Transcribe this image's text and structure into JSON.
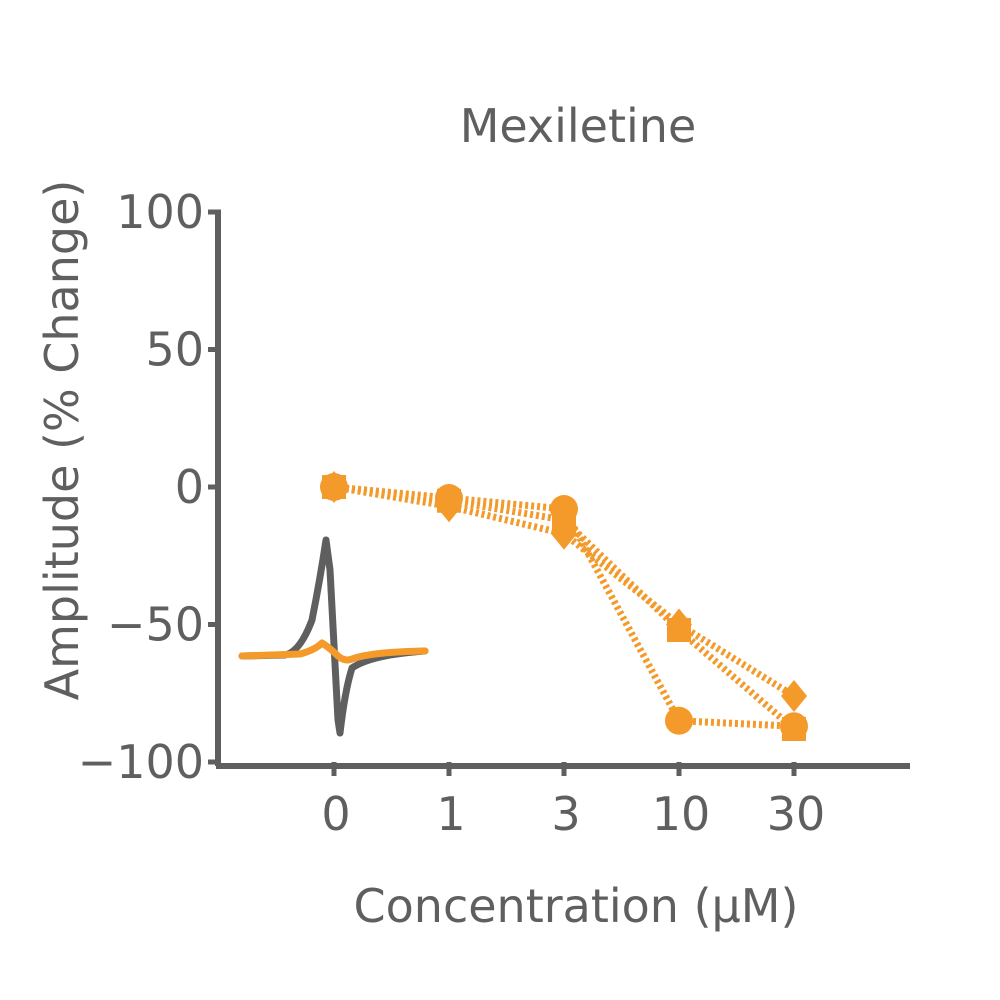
{
  "chart_data": {
    "type": "line",
    "title": "Mexiletine",
    "xlabel": "Concentration (μM)",
    "ylabel": "Amplitude (% Change)",
    "categories": [
      "0",
      "1",
      "3",
      "10",
      "30"
    ],
    "yticks": [
      "100",
      "50",
      "0",
      "−50",
      "−100"
    ],
    "ytick_values": [
      100,
      50,
      0,
      -50,
      -100
    ],
    "ylim": [
      -100,
      100
    ],
    "grid": false,
    "legend": "none",
    "series": [
      {
        "marker": "circle",
        "values": [
          0,
          -4,
          -8,
          -85,
          -87
        ]
      },
      {
        "marker": "diamond",
        "values": [
          0,
          -7,
          -17,
          -50,
          -76
        ]
      },
      {
        "marker": "square",
        "values": [
          0,
          -5,
          -12,
          -52,
          -88
        ]
      }
    ],
    "colors": {
      "series": "#f39a2b",
      "axis": "#5f5f5f",
      "trace_baseline": "#5f5f5f"
    },
    "inset_icon": "waveform-trace-icon"
  }
}
